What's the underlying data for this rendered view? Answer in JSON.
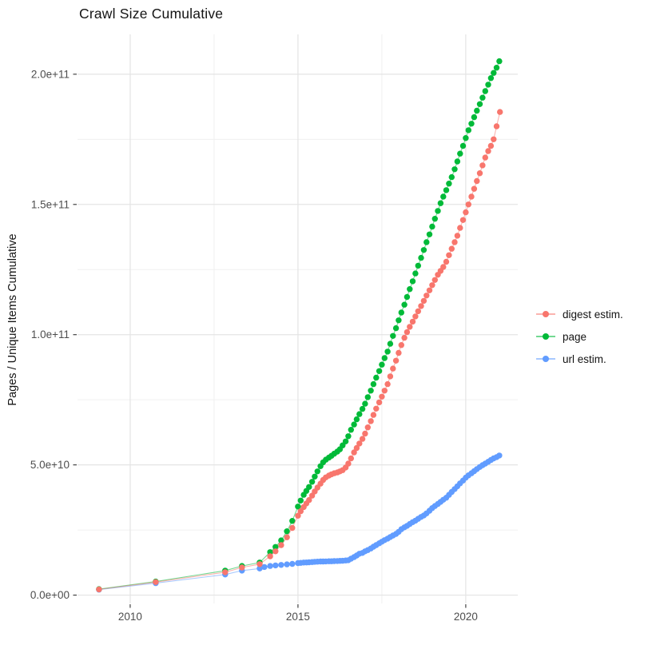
{
  "title": "Crawl Size Cumulative",
  "y_axis_title": "Pages / Unique Items Cumulative",
  "legend": {
    "items": [
      {
        "label": "digest estim.",
        "color": "#F8766D"
      },
      {
        "label": "page",
        "color": "#00BA38"
      },
      {
        "label": "url estim.",
        "color": "#619CFF"
      }
    ]
  },
  "colors": {
    "grid_major": "#E4E4E4",
    "grid_minor": "#F0F0F0",
    "tick_mark": "#333333",
    "tick_label": "#4D4D4D"
  },
  "chart_data": {
    "type": "scatter",
    "title": "Crawl Size Cumulative",
    "xlabel": "",
    "ylabel": "Pages / Unique Items Cumulative",
    "values_unit": "items, stored in billions (1e9)",
    "xlim": [
      2008.43,
      2021.55
    ],
    "ylim_billions": [
      -3.2,
      215.3
    ],
    "grid": true,
    "legend_position": "right",
    "x_major_ticks": [
      2010,
      2015,
      2020
    ],
    "x_tick_labels": [
      "2010",
      "2015",
      "2020"
    ],
    "x_minor_gridlines": [
      2012.5,
      2017.5
    ],
    "y_major_ticks_billions": [
      0,
      50,
      100,
      150,
      200
    ],
    "y_tick_labels": [
      "0.0e+00",
      "5.0e+10",
      "1.0e+11",
      "1.5e+11",
      "2.0e+11"
    ],
    "y_minor_gridlines_billions": [
      25,
      75,
      125,
      175
    ],
    "point_radius": 3.7,
    "series": [
      {
        "name": "url estim.",
        "color": "#619CFF",
        "points": [
          [
            2009.07,
            2.1
          ],
          [
            2010.76,
            4.6
          ],
          [
            2012.83,
            7.9
          ],
          [
            2013.33,
            9.4
          ],
          [
            2013.86,
            10.2
          ],
          [
            2014.0,
            10.8
          ],
          [
            2014.17,
            11.2
          ],
          [
            2014.33,
            11.4
          ],
          [
            2014.5,
            11.6
          ],
          [
            2014.67,
            11.8
          ],
          [
            2014.83,
            12.0
          ],
          [
            2015.0,
            12.3
          ],
          [
            2015.08,
            12.4
          ],
          [
            2015.17,
            12.5
          ],
          [
            2015.25,
            12.55
          ],
          [
            2015.33,
            12.6
          ],
          [
            2015.42,
            12.7
          ],
          [
            2015.5,
            12.8
          ],
          [
            2015.58,
            12.85
          ],
          [
            2015.67,
            12.9
          ],
          [
            2015.75,
            12.9
          ],
          [
            2015.83,
            12.95
          ],
          [
            2015.92,
            13.0
          ],
          [
            2016.0,
            13.0
          ],
          [
            2016.08,
            13.05
          ],
          [
            2016.17,
            13.1
          ],
          [
            2016.25,
            13.15
          ],
          [
            2016.33,
            13.2
          ],
          [
            2016.42,
            13.3
          ],
          [
            2016.5,
            13.4
          ],
          [
            2016.58,
            14.0
          ],
          [
            2016.67,
            14.6
          ],
          [
            2016.75,
            15.2
          ],
          [
            2016.83,
            15.9
          ],
          [
            2016.92,
            16.2
          ],
          [
            2017.0,
            16.8
          ],
          [
            2017.08,
            17.3
          ],
          [
            2017.17,
            17.9
          ],
          [
            2017.25,
            18.6
          ],
          [
            2017.33,
            19.2
          ],
          [
            2017.42,
            19.9
          ],
          [
            2017.5,
            20.5
          ],
          [
            2017.58,
            21.1
          ],
          [
            2017.67,
            21.7
          ],
          [
            2017.75,
            22.3
          ],
          [
            2017.83,
            22.9
          ],
          [
            2017.92,
            23.5
          ],
          [
            2018.0,
            24.3
          ],
          [
            2018.08,
            25.3
          ],
          [
            2018.17,
            26
          ],
          [
            2018.25,
            26.6
          ],
          [
            2018.33,
            27.3
          ],
          [
            2018.42,
            28
          ],
          [
            2018.5,
            28.6
          ],
          [
            2018.58,
            29.3
          ],
          [
            2018.67,
            30
          ],
          [
            2018.75,
            30.6
          ],
          [
            2018.83,
            31.4
          ],
          [
            2018.92,
            32.4
          ],
          [
            2019.0,
            33.4
          ],
          [
            2019.08,
            34.2
          ],
          [
            2019.17,
            35
          ],
          [
            2019.25,
            35.8
          ],
          [
            2019.33,
            36.6
          ],
          [
            2019.42,
            37.4
          ],
          [
            2019.5,
            38.5
          ],
          [
            2019.58,
            39.6
          ],
          [
            2019.67,
            40.7
          ],
          [
            2019.75,
            41.8
          ],
          [
            2019.83,
            42.9
          ],
          [
            2019.92,
            44
          ],
          [
            2020.0,
            45.1
          ],
          [
            2020.08,
            46
          ],
          [
            2020.17,
            46.8
          ],
          [
            2020.25,
            47.6
          ],
          [
            2020.33,
            48.4
          ],
          [
            2020.42,
            49.2
          ],
          [
            2020.5,
            49.9
          ],
          [
            2020.58,
            50.5
          ],
          [
            2020.67,
            51.2
          ],
          [
            2020.75,
            51.9
          ],
          [
            2020.83,
            52.5
          ],
          [
            2020.92,
            53
          ],
          [
            2021.0,
            53.6
          ]
        ]
      },
      {
        "name": "page",
        "color": "#00BA38",
        "points": [
          [
            2009.07,
            2.3
          ],
          [
            2010.76,
            5.2
          ],
          [
            2012.83,
            9.4
          ],
          [
            2013.33,
            11.2
          ],
          [
            2013.86,
            12.5
          ],
          [
            2014.17,
            16.5
          ],
          [
            2014.33,
            18.5
          ],
          [
            2014.5,
            21
          ],
          [
            2014.67,
            24.5
          ],
          [
            2014.83,
            28.5
          ],
          [
            2015.0,
            34
          ],
          [
            2015.08,
            36.3
          ],
          [
            2015.17,
            38.5
          ],
          [
            2015.25,
            40
          ],
          [
            2015.33,
            41.5
          ],
          [
            2015.42,
            43.5
          ],
          [
            2015.5,
            45.5
          ],
          [
            2015.58,
            47.5
          ],
          [
            2015.67,
            49.5
          ],
          [
            2015.75,
            51
          ],
          [
            2015.83,
            52
          ],
          [
            2015.92,
            52.8
          ],
          [
            2016.0,
            53.5
          ],
          [
            2016.08,
            54.3
          ],
          [
            2016.17,
            55.1
          ],
          [
            2016.25,
            56
          ],
          [
            2016.33,
            57.5
          ],
          [
            2016.42,
            59
          ],
          [
            2016.5,
            61
          ],
          [
            2016.58,
            63.5
          ],
          [
            2016.67,
            65.5
          ],
          [
            2016.75,
            67.5
          ],
          [
            2016.83,
            69.5
          ],
          [
            2016.92,
            71.5
          ],
          [
            2017.0,
            73.5
          ],
          [
            2017.08,
            76
          ],
          [
            2017.17,
            78.5
          ],
          [
            2017.25,
            81
          ],
          [
            2017.33,
            83.5
          ],
          [
            2017.42,
            86
          ],
          [
            2017.5,
            88.5
          ],
          [
            2017.58,
            91
          ],
          [
            2017.67,
            93.5
          ],
          [
            2017.75,
            96.5
          ],
          [
            2017.83,
            99.5
          ],
          [
            2017.92,
            102.5
          ],
          [
            2018.0,
            105.5
          ],
          [
            2018.08,
            108.5
          ],
          [
            2018.17,
            111.5
          ],
          [
            2018.25,
            114.5
          ],
          [
            2018.33,
            117.5
          ],
          [
            2018.42,
            120.5
          ],
          [
            2018.5,
            123.5
          ],
          [
            2018.58,
            126.5
          ],
          [
            2018.67,
            129.5
          ],
          [
            2018.75,
            132.5
          ],
          [
            2018.83,
            135.5
          ],
          [
            2018.92,
            138.5
          ],
          [
            2019.0,
            141.5
          ],
          [
            2019.08,
            144.5
          ],
          [
            2019.17,
            147.5
          ],
          [
            2019.25,
            150.5
          ],
          [
            2019.33,
            153
          ],
          [
            2019.42,
            155.5
          ],
          [
            2019.5,
            158
          ],
          [
            2019.58,
            160.5
          ],
          [
            2019.67,
            163.5
          ],
          [
            2019.75,
            166.5
          ],
          [
            2019.83,
            169.5
          ],
          [
            2019.92,
            172.5
          ],
          [
            2020.0,
            175.5
          ],
          [
            2020.08,
            178.5
          ],
          [
            2020.17,
            181
          ],
          [
            2020.25,
            183.5
          ],
          [
            2020.33,
            186
          ],
          [
            2020.42,
            188.5
          ],
          [
            2020.5,
            191
          ],
          [
            2020.58,
            193.5
          ],
          [
            2020.67,
            196
          ],
          [
            2020.75,
            198.5
          ],
          [
            2020.83,
            200.5
          ],
          [
            2020.92,
            202.5
          ],
          [
            2021.0,
            205
          ]
        ]
      },
      {
        "name": "digest estim.",
        "color": "#F8766D",
        "points": [
          [
            2009.07,
            2.2
          ],
          [
            2010.76,
            5.0
          ],
          [
            2012.83,
            8.8
          ],
          [
            2013.33,
            10.6
          ],
          [
            2013.86,
            11.9
          ],
          [
            2014.17,
            14.9
          ],
          [
            2014.33,
            16.8
          ],
          [
            2014.5,
            19.2
          ],
          [
            2014.67,
            22.2
          ],
          [
            2014.83,
            25.8
          ],
          [
            2015.0,
            30.5
          ],
          [
            2015.08,
            32.2
          ],
          [
            2015.17,
            33.8
          ],
          [
            2015.25,
            35.2
          ],
          [
            2015.33,
            36.5
          ],
          [
            2015.42,
            38.2
          ],
          [
            2015.5,
            39.8
          ],
          [
            2015.58,
            41.3
          ],
          [
            2015.67,
            42.8
          ],
          [
            2015.75,
            44.2
          ],
          [
            2015.83,
            45.2
          ],
          [
            2015.92,
            45.9
          ],
          [
            2016.0,
            46.4
          ],
          [
            2016.08,
            46.8
          ],
          [
            2016.17,
            47.1
          ],
          [
            2016.25,
            47.5
          ],
          [
            2016.33,
            48
          ],
          [
            2016.42,
            49
          ],
          [
            2016.5,
            50.5
          ],
          [
            2016.58,
            52.5
          ],
          [
            2016.67,
            54.8
          ],
          [
            2016.75,
            56.5
          ],
          [
            2016.83,
            58.2
          ],
          [
            2016.92,
            60
          ],
          [
            2017.0,
            62
          ],
          [
            2017.08,
            64.4
          ],
          [
            2017.17,
            66.8
          ],
          [
            2017.25,
            69.2
          ],
          [
            2017.33,
            71.6
          ],
          [
            2017.42,
            74
          ],
          [
            2017.5,
            76.2
          ],
          [
            2017.58,
            78.5
          ],
          [
            2017.67,
            81
          ],
          [
            2017.75,
            84
          ],
          [
            2017.83,
            87
          ],
          [
            2017.92,
            90
          ],
          [
            2018.0,
            93
          ],
          [
            2018.08,
            96
          ],
          [
            2018.17,
            98.8
          ],
          [
            2018.25,
            101
          ],
          [
            2018.33,
            103
          ],
          [
            2018.42,
            105
          ],
          [
            2018.5,
            107
          ],
          [
            2018.58,
            109
          ],
          [
            2018.67,
            111
          ],
          [
            2018.75,
            113
          ],
          [
            2018.83,
            115
          ],
          [
            2018.92,
            117
          ],
          [
            2019.0,
            119
          ],
          [
            2019.08,
            121
          ],
          [
            2019.17,
            123
          ],
          [
            2019.25,
            124.5
          ],
          [
            2019.33,
            126
          ],
          [
            2019.42,
            128
          ],
          [
            2019.5,
            130.5
          ],
          [
            2019.58,
            133
          ],
          [
            2019.67,
            135.5
          ],
          [
            2019.75,
            138
          ],
          [
            2019.83,
            141
          ],
          [
            2019.92,
            144
          ],
          [
            2020.0,
            147
          ],
          [
            2020.08,
            150
          ],
          [
            2020.17,
            153
          ],
          [
            2020.25,
            156
          ],
          [
            2020.33,
            159
          ],
          [
            2020.42,
            162
          ],
          [
            2020.5,
            165
          ],
          [
            2020.58,
            168
          ],
          [
            2020.67,
            170.5
          ],
          [
            2020.75,
            172.5
          ],
          [
            2020.83,
            175
          ],
          [
            2020.92,
            180
          ],
          [
            2021.02,
            185.5
          ]
        ]
      }
    ]
  }
}
